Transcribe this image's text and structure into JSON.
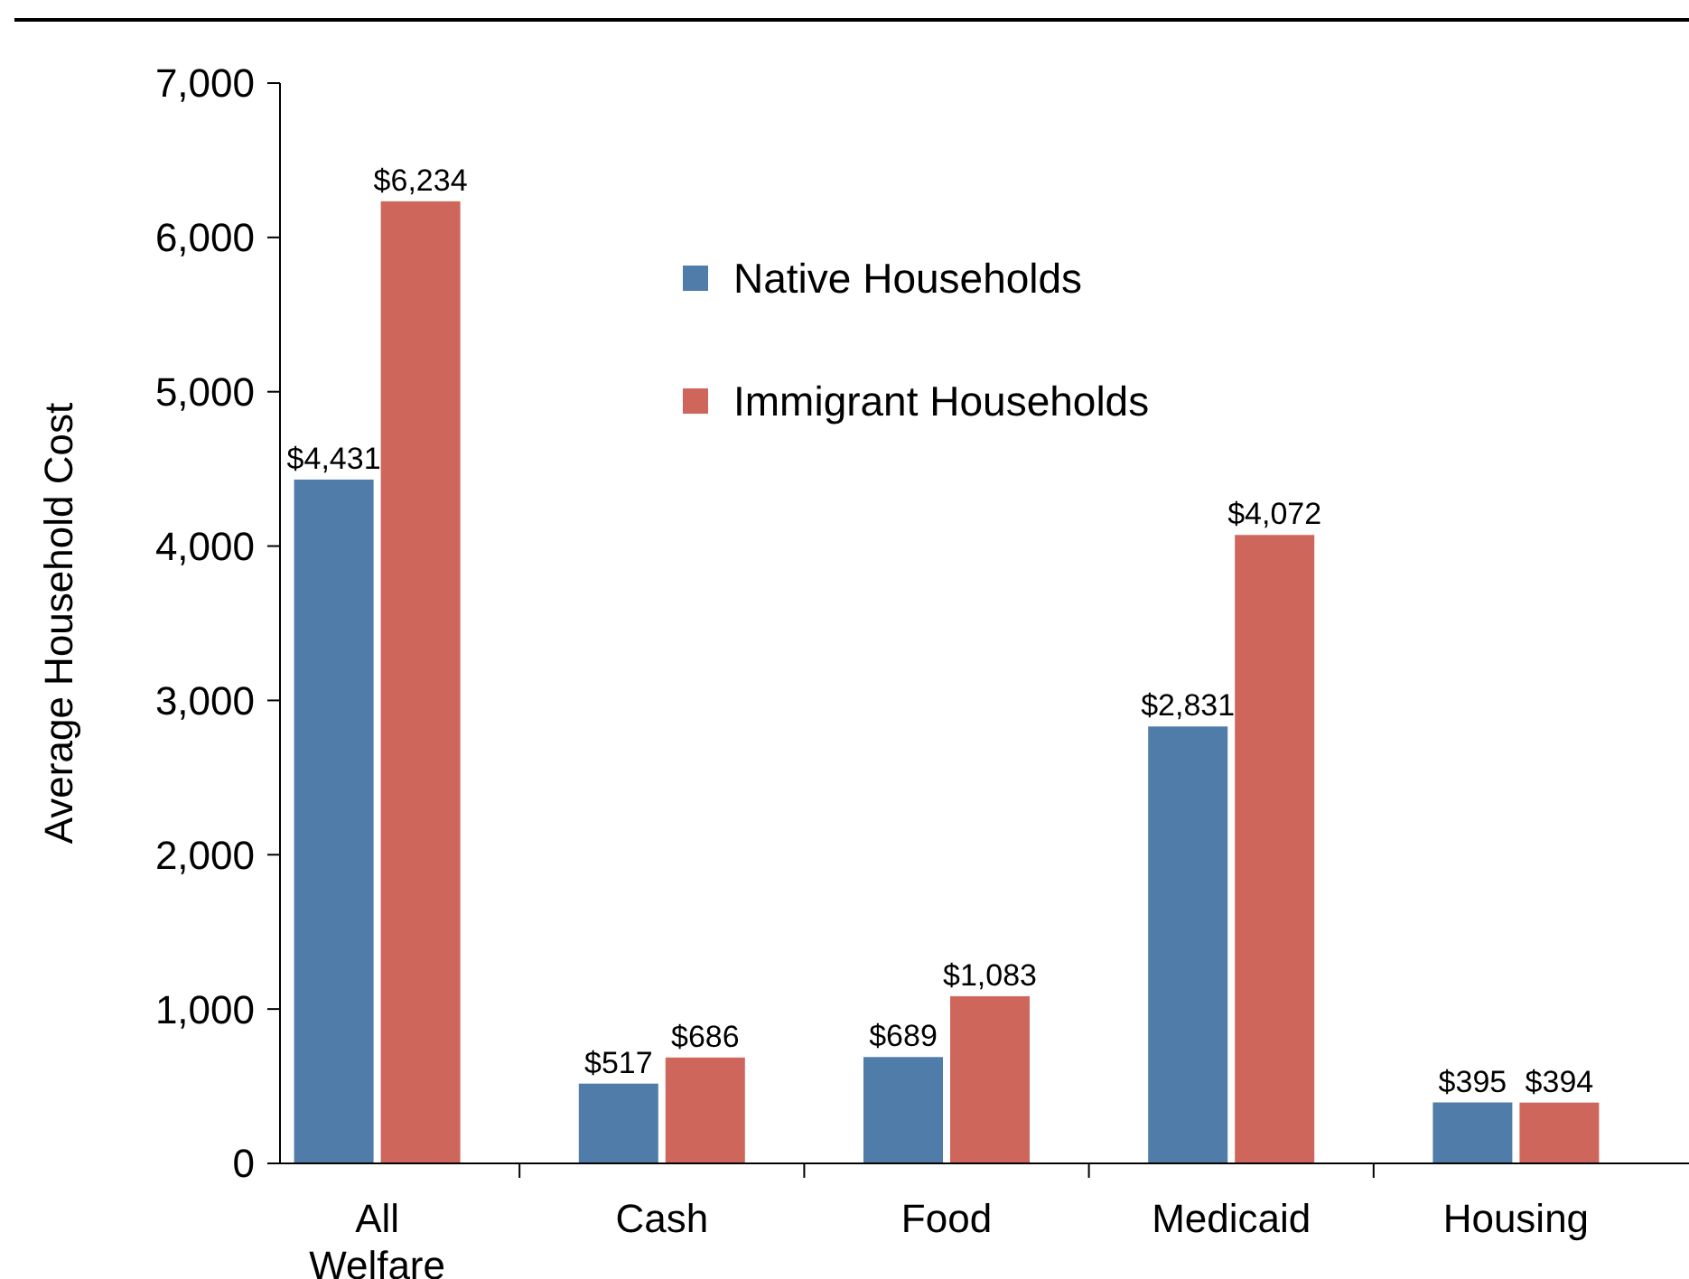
{
  "chart_data": {
    "type": "bar",
    "ylabel": "Average Household Cost",
    "categories": [
      "All\nWelfare",
      "Cash",
      "Food",
      "Medicaid",
      "Housing"
    ],
    "series": [
      {
        "name": "Native Households",
        "color": "#4f7ca8",
        "values": [
          4431,
          517,
          689,
          2831,
          395
        ],
        "value_labels": [
          "$4,431",
          "$517",
          "$689",
          "$2,831",
          "$395"
        ]
      },
      {
        "name": "Immigrant Households",
        "color": "#cf665c",
        "values": [
          6234,
          686,
          1083,
          4072,
          394
        ],
        "value_labels": [
          "$6,234",
          "$686",
          "$1,083",
          "$4,072",
          "$394"
        ]
      }
    ],
    "ylim": [
      0,
      7000
    ],
    "yticks": [
      {
        "value": 0,
        "label": "0"
      },
      {
        "value": 1000,
        "label": "1,000"
      },
      {
        "value": 2000,
        "label": "2,000"
      },
      {
        "value": 3000,
        "label": "3,000"
      },
      {
        "value": 4000,
        "label": "4,000"
      },
      {
        "value": 5000,
        "label": "5,000"
      },
      {
        "value": 6000,
        "label": "6,000"
      },
      {
        "value": 7000,
        "label": "7,000"
      }
    ],
    "legend": "top center",
    "grid": false
  }
}
